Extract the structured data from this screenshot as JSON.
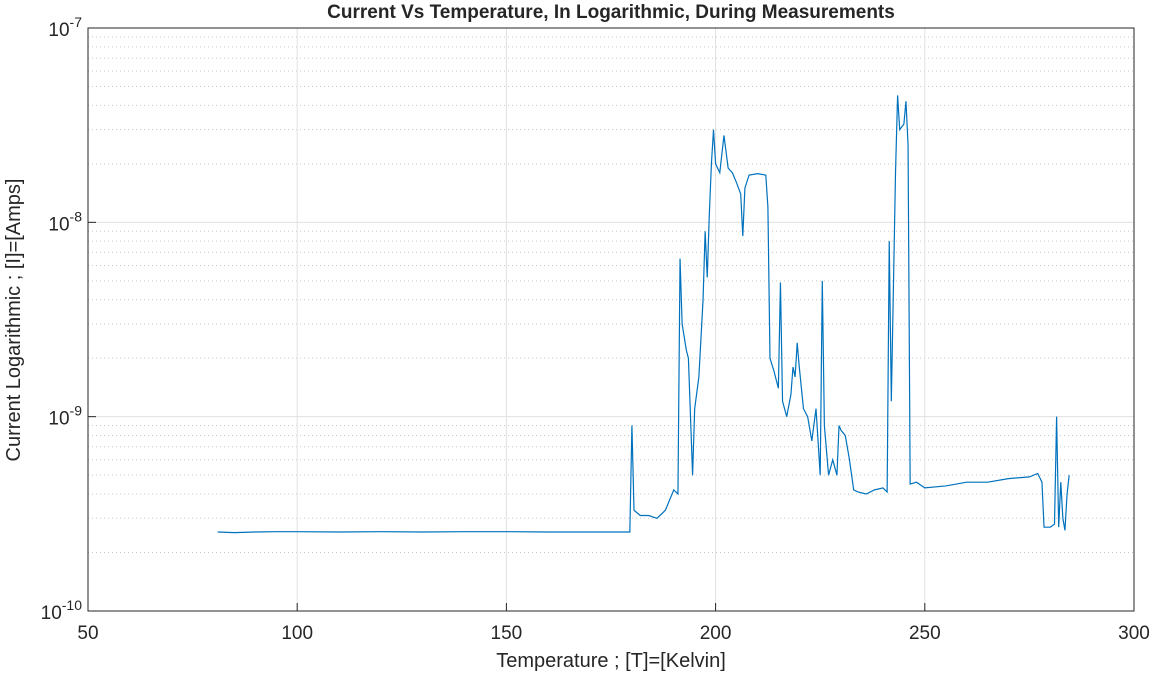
{
  "chart_data": {
    "type": "line",
    "title": "Current Vs Temperature, In Logarithmic, During Measurements",
    "xlabel": "Temperature ; [T]=[Kelvin]",
    "ylabel": "Current Logarithmic ; [I]=[Amps]",
    "yscale": "log",
    "grid": true,
    "minor_grid": true,
    "xlim": [
      50,
      300
    ],
    "xticks": [
      50,
      100,
      150,
      200,
      250,
      300
    ],
    "ylim": [
      1e-10,
      1e-07
    ],
    "yticks": [
      {
        "value": 1e-10,
        "label": "10-10"
      },
      {
        "value": 1e-09,
        "label": "10-9"
      },
      {
        "value": 1e-08,
        "label": "10-8"
      },
      {
        "value": 1e-07,
        "label": "10-7"
      }
    ],
    "yminorticks": [
      2e-10,
      3e-10,
      4e-10,
      5e-10,
      6e-10,
      7e-10,
      8e-10,
      9e-10,
      2e-09,
      3e-09,
      4e-09,
      5e-09,
      6e-09,
      7e-09,
      8e-09,
      9e-09,
      2e-08,
      3e-08,
      4e-08,
      5e-08,
      6e-08,
      7e-08,
      8e-08,
      9e-08
    ],
    "series": [
      {
        "name": "Current",
        "color": "#0072bd",
        "x": [
          81,
          85,
          90,
          95,
          100,
          110,
          120,
          130,
          140,
          150,
          160,
          170,
          179.5,
          180,
          180.5,
          182,
          184,
          186,
          188,
          190,
          191,
          191.5,
          192,
          193,
          193.5,
          194,
          194.5,
          195,
          196,
          197,
          197.5,
          198,
          198.5,
          199,
          199.5,
          200,
          201,
          202,
          203,
          204,
          205,
          206,
          206.5,
          207,
          208,
          210,
          212,
          212.5,
          213,
          214,
          215,
          215.5,
          216,
          217,
          218,
          218.5,
          219,
          219.5,
          220,
          221,
          222,
          223,
          224,
          225,
          225.5,
          226,
          227,
          228,
          229,
          229.5,
          230,
          231,
          232,
          233,
          234,
          236,
          238,
          240,
          241,
          241.5,
          242,
          243,
          243.5,
          244,
          245,
          245.5,
          246,
          246.5,
          248,
          250,
          255,
          260,
          265,
          270,
          275,
          277,
          278,
          278.5,
          280,
          281,
          281.5,
          282,
          282.5,
          283,
          283.5,
          284,
          284.5
        ],
        "values": [
          2.55e-10,
          2.53e-10,
          2.55e-10,
          2.56e-10,
          2.56e-10,
          2.55e-10,
          2.56e-10,
          2.55e-10,
          2.56e-10,
          2.56e-10,
          2.55e-10,
          2.55e-10,
          2.55e-10,
          9e-10,
          3.3e-10,
          3.1e-10,
          3.1e-10,
          3e-10,
          3.3e-10,
          4.2e-10,
          4e-10,
          6.5e-09,
          3e-09,
          2.2e-09,
          2e-09,
          1e-09,
          5e-10,
          1.1e-09,
          1.6e-09,
          4e-09,
          9e-09,
          5.2e-09,
          1.1e-08,
          2e-08,
          3e-08,
          2e-08,
          1.8e-08,
          2.8e-08,
          1.9e-08,
          1.8e-08,
          1.6e-08,
          1.4e-08,
          8.5e-09,
          1.5e-08,
          1.75e-08,
          1.78e-08,
          1.75e-08,
          1.2e-08,
          2e-09,
          1.7e-09,
          1.4e-09,
          4.9e-09,
          1.2e-09,
          1e-09,
          1.3e-09,
          1.8e-09,
          1.6e-09,
          2.4e-09,
          1.8e-09,
          1.1e-09,
          1e-09,
          7.5e-10,
          1.1e-09,
          5e-10,
          5e-09,
          9e-10,
          5e-10,
          6e-10,
          5e-10,
          9e-10,
          8.5e-10,
          8e-10,
          6e-10,
          4.2e-10,
          4.1e-10,
          4e-10,
          4.2e-10,
          4.3e-10,
          4.1e-10,
          8e-09,
          1.2e-09,
          1.8e-08,
          4.5e-08,
          3e-08,
          3.2e-08,
          4.2e-08,
          2.5e-08,
          4.5e-10,
          4.6e-10,
          4.3e-10,
          4.4e-10,
          4.6e-10,
          4.6e-10,
          4.8e-10,
          4.9e-10,
          5.1e-10,
          4.6e-10,
          2.7e-10,
          2.7e-10,
          2.8e-10,
          1e-09,
          2.7e-10,
          4.6e-10,
          3e-10,
          2.6e-10,
          4e-10,
          5e-10
        ]
      }
    ]
  }
}
